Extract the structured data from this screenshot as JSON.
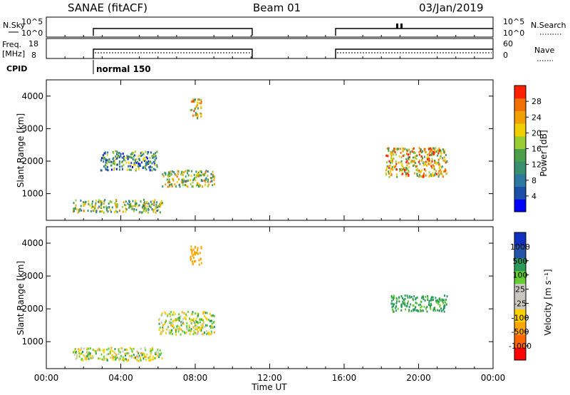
{
  "header": {
    "site": "SANAE (fitACF)",
    "beam": "Beam 01",
    "date": "03/Jan/2019"
  },
  "top_panels": {
    "nsky_label": "N.Sky",
    "nsky_ticks": [
      "10^5",
      "10^0"
    ],
    "nsearch_label": "N.Search",
    "nsearch_ticks": [
      "10^5",
      "10^0"
    ],
    "freq_label_1": "Freq.",
    "freq_label_2": "[MHz]",
    "freq_ticks": [
      "18",
      "8"
    ],
    "nave_label": "Nave",
    "nave_ticks": [
      "60",
      "0"
    ],
    "cpid_label": "CPID",
    "cpid_value": "normal 150"
  },
  "colors": {
    "power": [
      "#0000ff",
      "#1c4fa8",
      "#2c78a0",
      "#3a8f6e",
      "#4aa04a",
      "#9acd32",
      "#f0d000",
      "#f0a000",
      "#f07000",
      "#ff2000"
    ],
    "velocity": [
      "#ff0000",
      "#ff6600",
      "#ffa500",
      "#ffd000",
      "#c8c8c0",
      "#c8c8c0",
      "#66cc33",
      "#2a9a5a",
      "#2255aa",
      "#1030c0"
    ]
  },
  "chart_data": [
    {
      "type": "heatmap",
      "title": "Power",
      "ylabel": "Slant Range [km]",
      "yticks": [
        "1000",
        "2000",
        "3000",
        "4000"
      ],
      "ylim": [
        180,
        4500
      ],
      "colorbar_label": "Power [dB]",
      "colorbar_ticks": [
        "4",
        "8",
        "12",
        "16",
        "20",
        "24",
        "28"
      ],
      "colorbar_range": [
        0,
        32
      ],
      "scatter_regions": [
        {
          "t_start": 1.4,
          "t_end": 6.2,
          "range_start": 400,
          "range_end": 800,
          "value": 16
        },
        {
          "t_start": 2.9,
          "t_end": 6.0,
          "range_start": 1700,
          "range_end": 2300,
          "value": 12
        },
        {
          "t_start": 6.2,
          "t_end": 9.0,
          "range_start": 1200,
          "range_end": 1700,
          "value": 18
        },
        {
          "t_start": 18.2,
          "t_end": 21.5,
          "range_start": 1500,
          "range_end": 2400,
          "value": 22
        },
        {
          "t_start": 7.7,
          "t_end": 8.3,
          "range_start": 3300,
          "range_end": 3900,
          "value": 22
        }
      ]
    },
    {
      "type": "heatmap",
      "title": "Velocity",
      "xlabel": "Time UT",
      "ylabel": "Slant Range [km]",
      "xticks": [
        "00:00",
        "04:00",
        "08:00",
        "12:00",
        "16:00",
        "20:00",
        "00:00"
      ],
      "xlim": [
        0,
        24
      ],
      "yticks": [
        "1000",
        "2000",
        "3000",
        "4000"
      ],
      "ylim": [
        180,
        4500
      ],
      "colorbar_label": "Velocity [m s⁻¹]",
      "colorbar_ticks": [
        "1000",
        "500",
        "100",
        "25",
        "-25",
        "-100",
        "-500",
        "-1000"
      ],
      "scatter_regions": [
        {
          "t_start": 1.4,
          "t_end": 6.2,
          "range_start": 400,
          "range_end": 800,
          "value": 0
        },
        {
          "t_start": 6.0,
          "t_end": 9.0,
          "range_start": 1200,
          "range_end": 1900,
          "value": 0
        },
        {
          "t_start": 18.5,
          "t_end": 21.5,
          "range_start": 1900,
          "range_end": 2400,
          "value": 150
        },
        {
          "t_start": 7.7,
          "t_end": 8.3,
          "range_start": 3300,
          "range_end": 3900,
          "value": -300
        }
      ]
    }
  ]
}
